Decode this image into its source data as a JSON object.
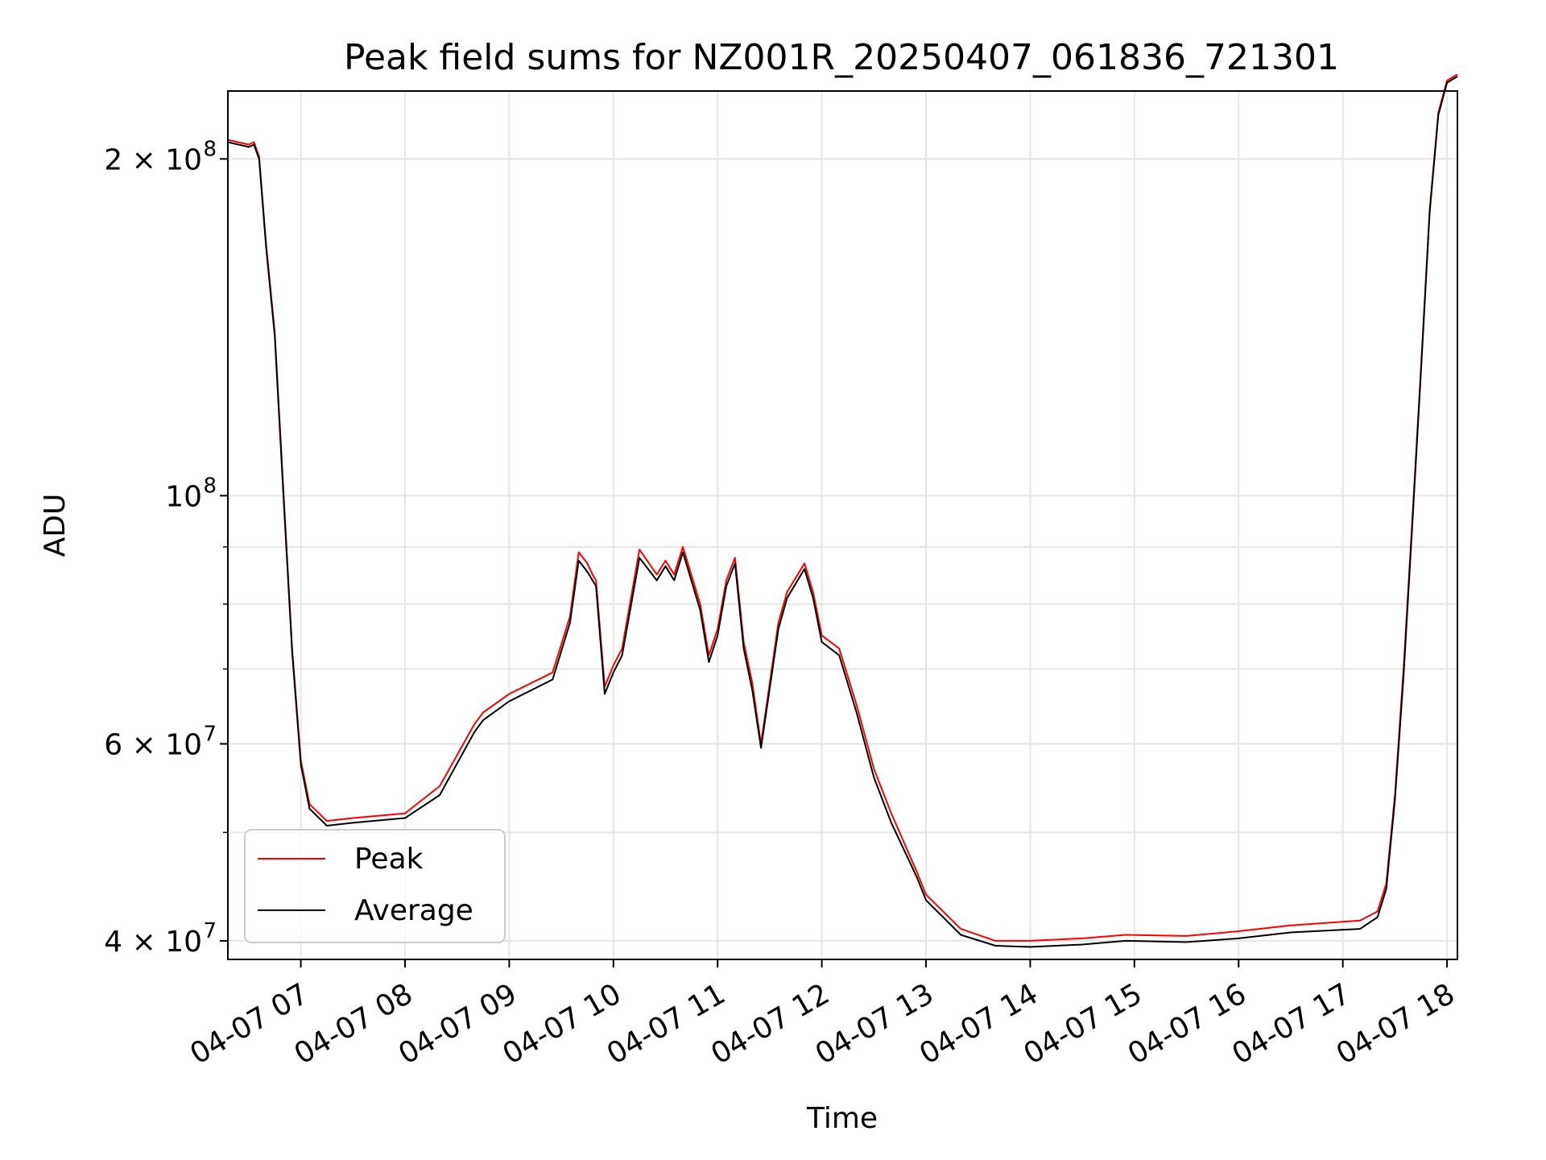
{
  "chart_data": {
    "type": "line",
    "title": "Peak field sums for NZ001R_20250407_061836_721301",
    "xlabel": "Time",
    "ylabel": "ADU",
    "y_scale": "log",
    "ylim": [
      38500000,
      230000000
    ],
    "xlim": [
      "2025-04-07 06:18",
      "2025-04-07 18:06"
    ],
    "grid": true,
    "legend_position": "lower-left",
    "x_tick_labels": [
      "04-07 07",
      "04-07 08",
      "04-07 09",
      "04-07 10",
      "04-07 11",
      "04-07 12",
      "04-07 13",
      "04-07 14",
      "04-07 15",
      "04-07 16",
      "04-07 17",
      "04-07 18"
    ],
    "x_tick_values": [
      "2025-04-07 07:00",
      "2025-04-07 08:00",
      "2025-04-07 09:00",
      "2025-04-07 10:00",
      "2025-04-07 11:00",
      "2025-04-07 12:00",
      "2025-04-07 13:00",
      "2025-04-07 14:00",
      "2025-04-07 15:00",
      "2025-04-07 16:00",
      "2025-04-07 17:00",
      "2025-04-07 18:00"
    ],
    "y_major_ticks": [
      {
        "value": 40000000,
        "label": "4 × 10",
        "exp": "7"
      },
      {
        "value": 60000000,
        "label": "6 × 10",
        "exp": "7"
      },
      {
        "value": 100000000,
        "label": "10",
        "exp": "8"
      },
      {
        "value": 200000000,
        "label": "2 × 10",
        "exp": "8"
      }
    ],
    "series": [
      {
        "name": "Peak",
        "color": "#ff0000"
      },
      {
        "name": "Average",
        "color": "#000000"
      }
    ],
    "x": [
      "2025-04-07 06:18",
      "2025-04-07 06:30",
      "2025-04-07 06:33",
      "2025-04-07 06:36",
      "2025-04-07 06:40",
      "2025-04-07 06:45",
      "2025-04-07 06:50",
      "2025-04-07 06:55",
      "2025-04-07 07:00",
      "2025-04-07 07:05",
      "2025-04-07 07:15",
      "2025-04-07 07:30",
      "2025-04-07 08:00",
      "2025-04-07 08:20",
      "2025-04-07 08:40",
      "2025-04-07 08:45",
      "2025-04-07 09:00",
      "2025-04-07 09:25",
      "2025-04-07 09:35",
      "2025-04-07 09:40",
      "2025-04-07 09:45",
      "2025-04-07 09:48",
      "2025-04-07 09:50",
      "2025-04-07 09:55",
      "2025-04-07 10:00",
      "2025-04-07 10:05",
      "2025-04-07 10:15",
      "2025-04-07 10:25",
      "2025-04-07 10:30",
      "2025-04-07 10:35",
      "2025-04-07 10:40",
      "2025-04-07 10:50",
      "2025-04-07 10:55",
      "2025-04-07 11:00",
      "2025-04-07 11:05",
      "2025-04-07 11:10",
      "2025-04-07 11:15",
      "2025-04-07 11:20",
      "2025-04-07 11:25",
      "2025-04-07 11:35",
      "2025-04-07 11:40",
      "2025-04-07 11:50",
      "2025-04-07 11:55",
      "2025-04-07 12:00",
      "2025-04-07 12:10",
      "2025-04-07 12:20",
      "2025-04-07 12:30",
      "2025-04-07 12:40",
      "2025-04-07 12:55",
      "2025-04-07 13:00",
      "2025-04-07 13:20",
      "2025-04-07 13:40",
      "2025-04-07 14:00",
      "2025-04-07 14:30",
      "2025-04-07 14:55",
      "2025-04-07 15:30",
      "2025-04-07 16:00",
      "2025-04-07 16:30",
      "2025-04-07 17:10",
      "2025-04-07 17:20",
      "2025-04-07 17:25",
      "2025-04-07 17:30",
      "2025-04-07 17:35",
      "2025-04-07 17:40",
      "2025-04-07 17:45",
      "2025-04-07 17:50",
      "2025-04-07 17:55",
      "2025-04-07 18:00",
      "2025-04-07 18:06"
    ],
    "values": {
      "Peak": [
        208000000,
        206000000,
        207000000,
        201000000,
        168000000,
        140000000,
        101000000,
        73000000,
        58000000,
        53000000,
        51200000,
        51500000,
        52000000,
        55000000,
        62500000,
        64000000,
        66500000,
        69500000,
        78000000,
        89000000,
        87000000,
        85000000,
        84000000,
        67500000,
        70500000,
        73000000,
        89500000,
        85000000,
        87500000,
        85000000,
        90000000,
        80000000,
        72000000,
        76000000,
        84000000,
        88000000,
        74000000,
        68000000,
        60000000,
        77000000,
        82000000,
        87000000,
        82000000,
        75000000,
        73000000,
        65000000,
        57000000,
        52000000,
        46000000,
        44000000,
        41000000,
        40000000,
        40000000,
        40200000,
        40500000,
        40400000,
        40800000,
        41300000,
        41700000,
        42500000,
        45000000,
        54000000,
        70000000,
        95000000,
        130000000,
        180000000,
        220000000,
        235000000,
        238000000
      ],
      "Average": [
        207000000,
        205000000,
        206000000,
        200000000,
        167000000,
        139000000,
        100000000,
        72500000,
        57500000,
        52500000,
        50700000,
        51000000,
        51500000,
        54000000,
        61500000,
        63000000,
        65500000,
        68500000,
        77000000,
        87500000,
        85500000,
        84000000,
        83000000,
        66500000,
        69500000,
        72000000,
        88000000,
        84000000,
        86500000,
        84000000,
        89000000,
        79000000,
        71000000,
        75000000,
        83000000,
        87000000,
        73000000,
        67000000,
        59500000,
        76000000,
        81000000,
        86000000,
        81000000,
        74000000,
        72000000,
        64000000,
        56000000,
        51000000,
        45500000,
        43500000,
        40500000,
        39600000,
        39500000,
        39700000,
        40000000,
        39900000,
        40200000,
        40700000,
        41000000,
        42000000,
        44500000,
        53500000,
        69000000,
        94000000,
        129000000,
        179000000,
        219000000,
        234000000,
        237000000
      ]
    }
  }
}
